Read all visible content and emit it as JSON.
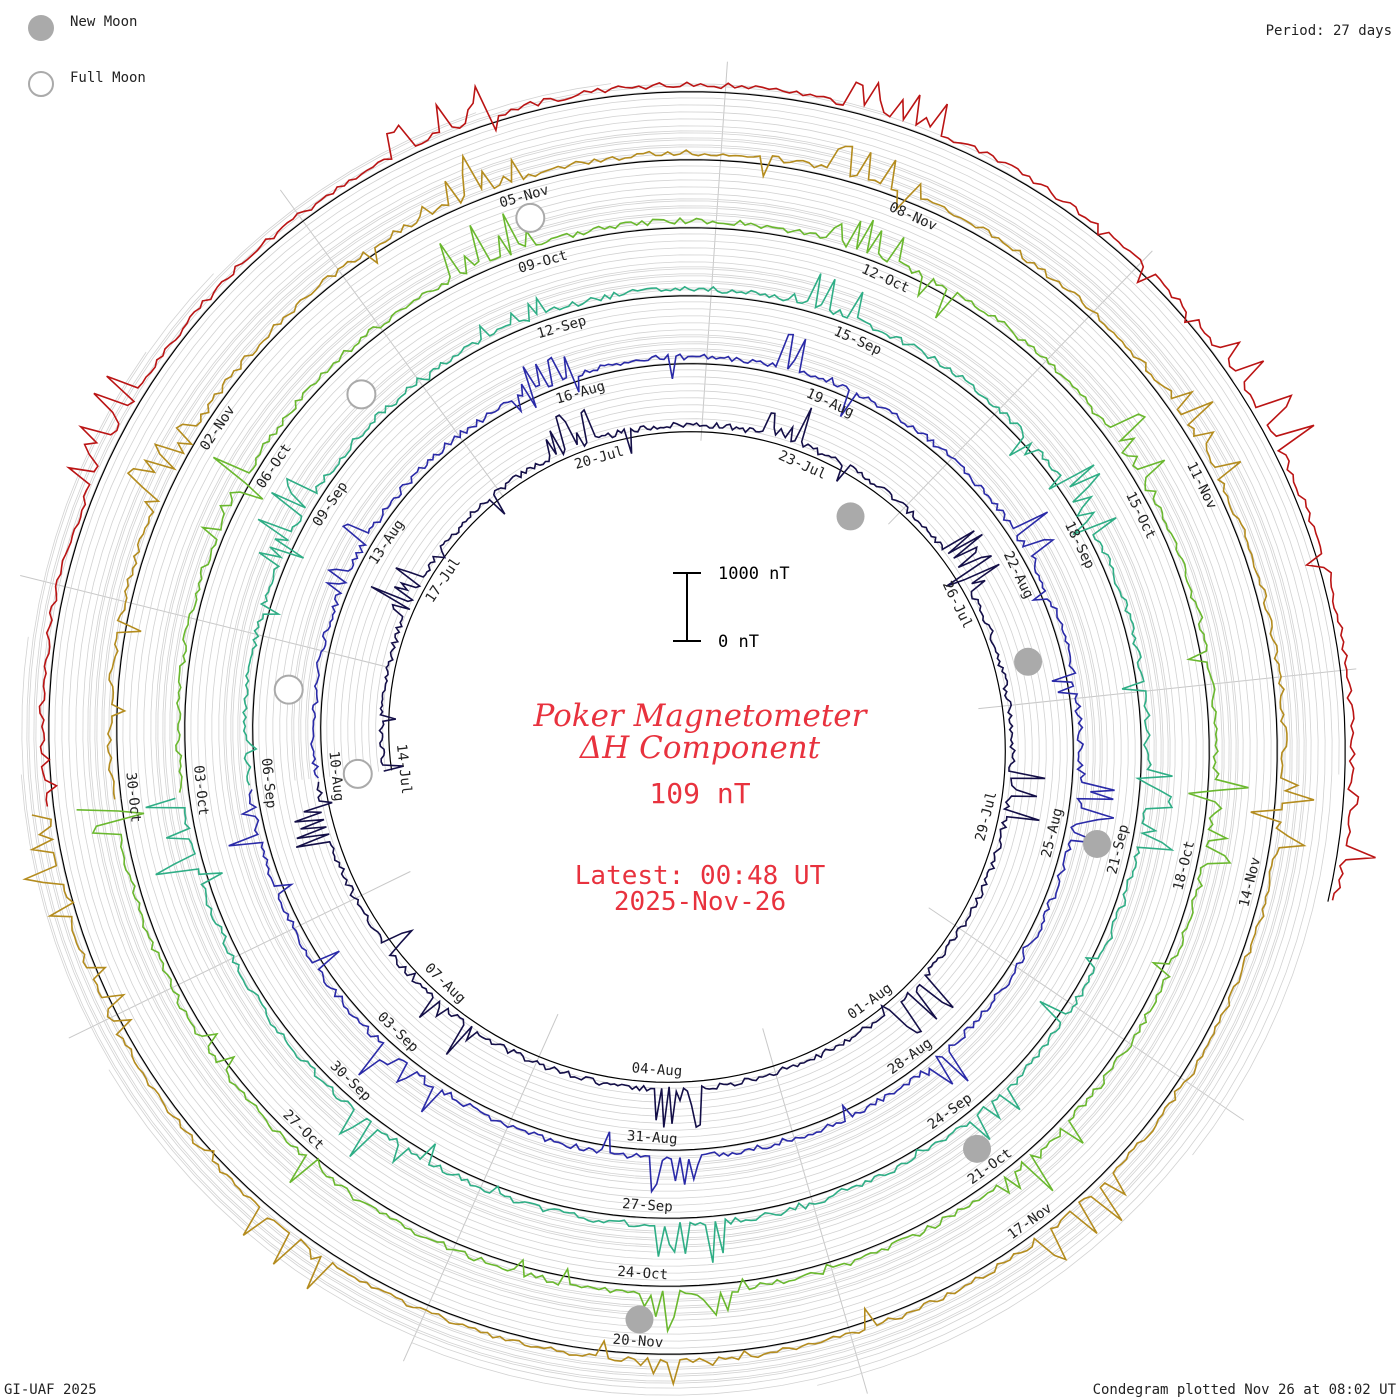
{
  "legend": {
    "new_moon_label": "New Moon",
    "full_moon_label": "Full Moon",
    "new_moon_color": "#aaaaaa",
    "full_moon_color": "#aaaaaa"
  },
  "period_label": "Period: 27 days",
  "footer": {
    "left": "GI-UAF 2025",
    "right": "Condegram plotted Nov 26 at 08:02 UT"
  },
  "scale_bar": {
    "top_label": "1000 nT",
    "bottom_label": "0 nT"
  },
  "title": {
    "line1": "Poker Magnetometer",
    "line2": "ΔH Component",
    "value": "109 nT",
    "latest": "Latest: 00:48 UT",
    "date": "2025-Nov-26"
  },
  "chart_data": {
    "type": "line",
    "layout": "spiral condegram",
    "period_days": 27,
    "rotations": [
      {
        "color": "#140f48",
        "labels": [
          "14-Jul",
          "17-Jul",
          "20-Jul",
          "23-Jul",
          "26-Jul",
          "29-Jul",
          "01-Aug",
          "04-Aug",
          "07-Aug"
        ]
      },
      {
        "color": "#2a2aa8",
        "labels": [
          "10-Aug",
          "13-Aug",
          "16-Aug",
          "19-Aug",
          "22-Aug",
          "25-Aug",
          "28-Aug",
          "31-Aug",
          "03-Sep"
        ]
      },
      {
        "color": "#2fae86",
        "labels": [
          "06-Sep",
          "09-Sep",
          "12-Sep",
          "15-Sep",
          "18-Sep",
          "21-Sep",
          "24-Sep",
          "27-Sep",
          "30-Sep"
        ]
      },
      {
        "color": "#6ab82e",
        "labels": [
          "03-Oct",
          "06-Oct",
          "09-Oct",
          "12-Oct",
          "15-Oct",
          "18-Oct",
          "21-Oct",
          "24-Oct",
          "27-Oct"
        ]
      },
      {
        "color": "#b48c1e",
        "labels": [
          "30-Oct",
          "02-Nov",
          "05-Nov",
          "08-Nov",
          "11-Nov",
          "14-Nov",
          "17-Nov",
          "20-Nov"
        ]
      },
      {
        "color": "#bb1414",
        "labels": []
      }
    ],
    "new_moon_dates": [
      "24-Jul",
      "23-Aug",
      "21-Sep",
      "21-Oct",
      "20-Nov"
    ],
    "full_moon_dates": [
      "10-Aug",
      "07-Sep",
      "07-Oct",
      "05-Nov"
    ],
    "scale_nT": [
      0,
      1000
    ]
  }
}
